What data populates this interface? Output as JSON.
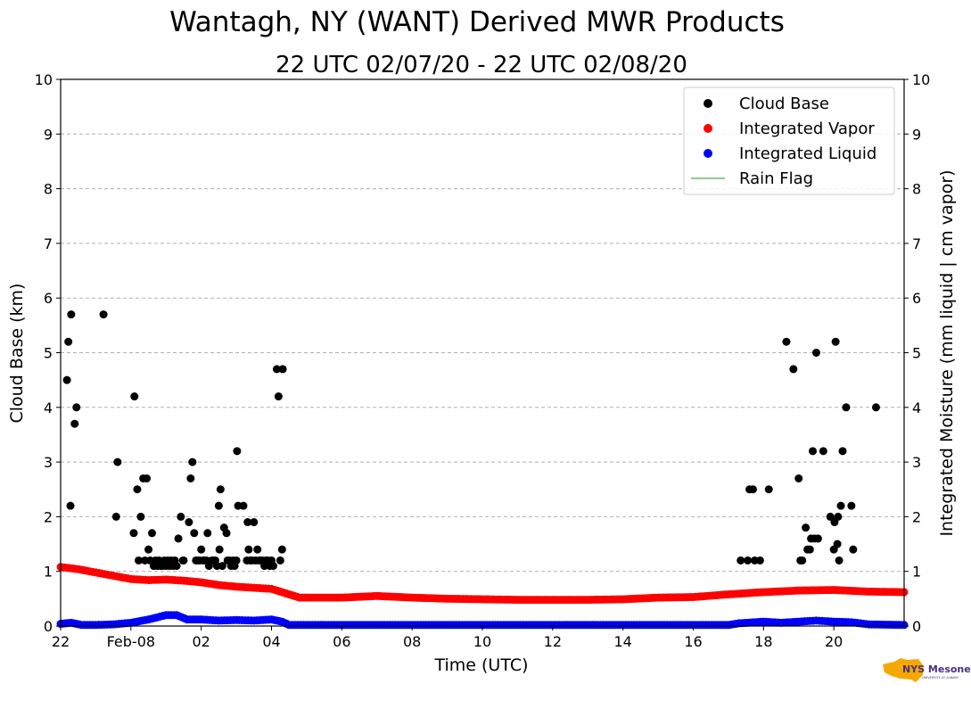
{
  "chart_data": {
    "type": "scatter",
    "title": "Wantagh, NY (WANT) Derived MWR Products",
    "subtitle": "22 UTC 02/07/20 - 22 UTC 02/08/20",
    "xlabel": "Time (UTC)",
    "ylabel": "Cloud Base (km)",
    "y2label": "Integrated Moisture (mm liquid | cm vapor)",
    "xlim": [
      0,
      24
    ],
    "ylim": [
      0,
      10
    ],
    "y2lim": [
      0,
      10
    ],
    "grid": "horizontal dashed",
    "legend_position": "top-right",
    "x_ticks": [
      {
        "x": 0,
        "label": "22"
      },
      {
        "x": 2,
        "label": "Feb-08"
      },
      {
        "x": 4,
        "label": "02"
      },
      {
        "x": 6,
        "label": "04"
      },
      {
        "x": 8,
        "label": "06"
      },
      {
        "x": 10,
        "label": "08"
      },
      {
        "x": 12,
        "label": "10"
      },
      {
        "x": 14,
        "label": "12"
      },
      {
        "x": 16,
        "label": "14"
      },
      {
        "x": 18,
        "label": "16"
      },
      {
        "x": 20,
        "label": "18"
      },
      {
        "x": 22,
        "label": "20"
      }
    ],
    "y_ticks": [
      "0",
      "1",
      "2",
      "3",
      "4",
      "5",
      "6",
      "7",
      "8",
      "9",
      "10"
    ],
    "y2_ticks": [
      "0",
      "1",
      "2",
      "3",
      "4",
      "5",
      "6",
      "7",
      "8",
      "9",
      "10"
    ],
    "series": [
      {
        "name": "Cloud Base",
        "color": "#000000",
        "marker": "circle",
        "points": [
          [
            0.18,
            4.5
          ],
          [
            0.22,
            5.2
          ],
          [
            0.28,
            2.2
          ],
          [
            0.3,
            5.7
          ],
          [
            0.4,
            3.7
          ],
          [
            0.45,
            4.0
          ],
          [
            1.22,
            5.7
          ],
          [
            1.58,
            2.0
          ],
          [
            1.62,
            3.0
          ],
          [
            2.08,
            1.7
          ],
          [
            2.1,
            4.2
          ],
          [
            2.18,
            2.5
          ],
          [
            2.22,
            1.2
          ],
          [
            2.28,
            2.0
          ],
          [
            2.35,
            2.7
          ],
          [
            2.4,
            1.2
          ],
          [
            2.45,
            2.7
          ],
          [
            2.5,
            1.4
          ],
          [
            2.55,
            1.2
          ],
          [
            2.6,
            1.7
          ],
          [
            2.65,
            1.1
          ],
          [
            2.7,
            1.2
          ],
          [
            2.75,
            1.1
          ],
          [
            2.8,
            1.2
          ],
          [
            2.85,
            1.1
          ],
          [
            2.9,
            1.1
          ],
          [
            2.95,
            1.2
          ],
          [
            3.0,
            1.1
          ],
          [
            3.05,
            1.2
          ],
          [
            3.1,
            1.1
          ],
          [
            3.15,
            1.2
          ],
          [
            3.2,
            1.1
          ],
          [
            3.25,
            1.2
          ],
          [
            3.3,
            1.1
          ],
          [
            3.35,
            1.6
          ],
          [
            3.42,
            2.0
          ],
          [
            3.48,
            1.2
          ],
          [
            3.5,
            1.2
          ],
          [
            3.65,
            1.9
          ],
          [
            3.7,
            2.7
          ],
          [
            3.75,
            3.0
          ],
          [
            3.8,
            1.7
          ],
          [
            3.85,
            1.2
          ],
          [
            3.9,
            1.2
          ],
          [
            3.95,
            1.2
          ],
          [
            4.0,
            1.4
          ],
          [
            4.05,
            1.2
          ],
          [
            4.1,
            1.2
          ],
          [
            4.15,
            1.2
          ],
          [
            4.18,
            1.7
          ],
          [
            4.22,
            1.1
          ],
          [
            4.3,
            1.2
          ],
          [
            4.35,
            1.2
          ],
          [
            4.4,
            1.2
          ],
          [
            4.45,
            1.1
          ],
          [
            4.5,
            2.2
          ],
          [
            4.52,
            1.4
          ],
          [
            4.55,
            2.5
          ],
          [
            4.6,
            1.1
          ],
          [
            4.65,
            1.8
          ],
          [
            4.72,
            1.7
          ],
          [
            4.75,
            1.2
          ],
          [
            4.8,
            1.2
          ],
          [
            4.85,
            1.1
          ],
          [
            4.9,
            1.2
          ],
          [
            4.95,
            1.1
          ],
          [
            5.0,
            1.2
          ],
          [
            5.02,
            3.2
          ],
          [
            5.05,
            2.2
          ],
          [
            5.2,
            2.2
          ],
          [
            5.3,
            1.2
          ],
          [
            5.32,
            1.9
          ],
          [
            5.35,
            1.4
          ],
          [
            5.4,
            1.2
          ],
          [
            5.45,
            1.2
          ],
          [
            5.5,
            1.9
          ],
          [
            5.55,
            1.2
          ],
          [
            5.6,
            1.4
          ],
          [
            5.65,
            1.2
          ],
          [
            5.7,
            1.2
          ],
          [
            5.75,
            1.2
          ],
          [
            5.8,
            1.1
          ],
          [
            5.85,
            1.2
          ],
          [
            5.9,
            1.2
          ],
          [
            5.95,
            1.1
          ],
          [
            6.0,
            1.2
          ],
          [
            6.05,
            1.1
          ],
          [
            6.15,
            4.7
          ],
          [
            6.2,
            4.2
          ],
          [
            6.25,
            1.2
          ],
          [
            6.3,
            1.4
          ],
          [
            6.32,
            4.7
          ],
          [
            19.35,
            1.2
          ],
          [
            19.55,
            1.2
          ],
          [
            19.6,
            2.5
          ],
          [
            19.7,
            2.5
          ],
          [
            19.75,
            1.2
          ],
          [
            19.9,
            1.2
          ],
          [
            20.15,
            2.5
          ],
          [
            20.65,
            5.2
          ],
          [
            20.85,
            4.7
          ],
          [
            21.0,
            2.7
          ],
          [
            21.05,
            1.2
          ],
          [
            21.1,
            1.2
          ],
          [
            21.2,
            1.8
          ],
          [
            21.25,
            1.4
          ],
          [
            21.32,
            1.4
          ],
          [
            21.35,
            1.6
          ],
          [
            21.4,
            3.2
          ],
          [
            21.45,
            1.6
          ],
          [
            21.5,
            5.0
          ],
          [
            21.55,
            1.6
          ],
          [
            21.7,
            3.2
          ],
          [
            21.9,
            2.0
          ],
          [
            22.0,
            1.4
          ],
          [
            22.02,
            1.9
          ],
          [
            22.05,
            5.2
          ],
          [
            22.1,
            1.5
          ],
          [
            22.12,
            2.0
          ],
          [
            22.15,
            1.2
          ],
          [
            22.2,
            2.2
          ],
          [
            22.25,
            3.2
          ],
          [
            22.35,
            4.0
          ],
          [
            22.5,
            2.2
          ],
          [
            22.55,
            1.4
          ],
          [
            23.2,
            4.0
          ]
        ]
      },
      {
        "name": "Integrated Vapor",
        "color": "#ff0000",
        "marker": "circle",
        "points": [
          [
            0,
            1.08
          ],
          [
            0.5,
            1.04
          ],
          [
            1,
            0.98
          ],
          [
            1.5,
            0.92
          ],
          [
            2,
            0.86
          ],
          [
            2.5,
            0.84
          ],
          [
            3,
            0.85
          ],
          [
            3.5,
            0.83
          ],
          [
            4,
            0.8
          ],
          [
            4.5,
            0.75
          ],
          [
            5,
            0.72
          ],
          [
            5.5,
            0.7
          ],
          [
            6,
            0.68
          ],
          [
            6.5,
            0.58
          ],
          [
            6.8,
            0.52
          ],
          [
            7,
            0.52
          ],
          [
            8,
            0.52
          ],
          [
            9,
            0.55
          ],
          [
            10,
            0.52
          ],
          [
            11,
            0.5
          ],
          [
            12,
            0.49
          ],
          [
            13,
            0.48
          ],
          [
            14,
            0.48
          ],
          [
            15,
            0.48
          ],
          [
            16,
            0.49
          ],
          [
            17,
            0.52
          ],
          [
            18,
            0.53
          ],
          [
            19,
            0.58
          ],
          [
            20,
            0.62
          ],
          [
            21,
            0.65
          ],
          [
            22,
            0.66
          ],
          [
            23,
            0.63
          ],
          [
            24,
            0.62
          ]
        ]
      },
      {
        "name": "Integrated Liquid",
        "color": "#0000ff",
        "marker": "circle",
        "points": [
          [
            0,
            0.04
          ],
          [
            0.3,
            0.06
          ],
          [
            0.6,
            0.02
          ],
          [
            1,
            0.02
          ],
          [
            1.5,
            0.03
          ],
          [
            2,
            0.06
          ],
          [
            2.5,
            0.12
          ],
          [
            3,
            0.2
          ],
          [
            3.3,
            0.2
          ],
          [
            3.6,
            0.12
          ],
          [
            4,
            0.12
          ],
          [
            4.5,
            0.1
          ],
          [
            5,
            0.11
          ],
          [
            5.5,
            0.1
          ],
          [
            6,
            0.12
          ],
          [
            6.3,
            0.08
          ],
          [
            6.5,
            0.02
          ],
          [
            7,
            0.02
          ],
          [
            10,
            0.02
          ],
          [
            13,
            0.02
          ],
          [
            16,
            0.02
          ],
          [
            19,
            0.02
          ],
          [
            19.3,
            0.05
          ],
          [
            20,
            0.08
          ],
          [
            20.5,
            0.06
          ],
          [
            21,
            0.08
          ],
          [
            21.5,
            0.1
          ],
          [
            22,
            0.08
          ],
          [
            22.5,
            0.07
          ],
          [
            23,
            0.03
          ],
          [
            24,
            0.02
          ]
        ]
      },
      {
        "name": "Rain Flag",
        "color": "#66bb66",
        "marker": "line",
        "points": []
      }
    ]
  },
  "logo": {
    "text": "NYS Mesonet",
    "subtext": "UNIVERSITY AT ALBANY",
    "color_state": "#f5a800",
    "color_text": "#4b2e83"
  }
}
